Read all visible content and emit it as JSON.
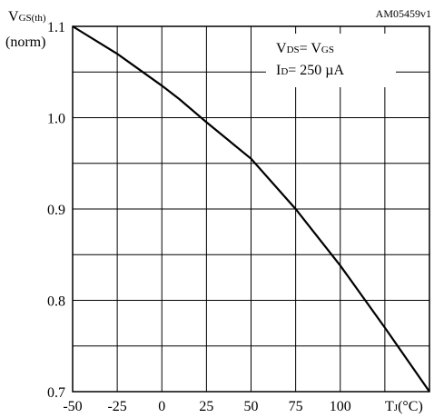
{
  "chart_data": {
    "type": "line",
    "figure_id": "AM05459v1",
    "ylabel": {
      "main": "V",
      "sub": "GS(th)"
    },
    "ylabel_unit": "(norm)",
    "xlabel": {
      "main": "T",
      "sub": "J",
      "unit": "(°C)"
    },
    "annotation": {
      "line1": {
        "v": "V",
        "ds_sub": "DS",
        "eq": "= V",
        "gs_sub": "GS"
      },
      "line2": {
        "i": "I",
        "d_sub": "D",
        "value": "= 250 µA"
      }
    },
    "x_ticks": [
      "-50",
      "-25",
      "0",
      "25",
      "50",
      "75",
      "100"
    ],
    "x_tick_values": [
      -50,
      -25,
      0,
      25,
      50,
      75,
      100
    ],
    "y_ticks": [
      "0.7",
      "0.8",
      "0.9",
      "1.0",
      "1.1"
    ],
    "y_tick_values": [
      0.7,
      0.8,
      0.9,
      1.0,
      1.1
    ],
    "xlim": [
      -50,
      150
    ],
    "ylim": [
      0.7,
      1.1
    ],
    "grid": true,
    "series": [
      {
        "values_x": [
          -50,
          -25,
          0,
          10,
          25,
          50,
          75,
          100,
          125,
          150
        ],
        "values_y": [
          1.1,
          1.07,
          1.035,
          1.02,
          0.995,
          0.955,
          0.9,
          0.838,
          0.77,
          0.7
        ]
      }
    ]
  }
}
